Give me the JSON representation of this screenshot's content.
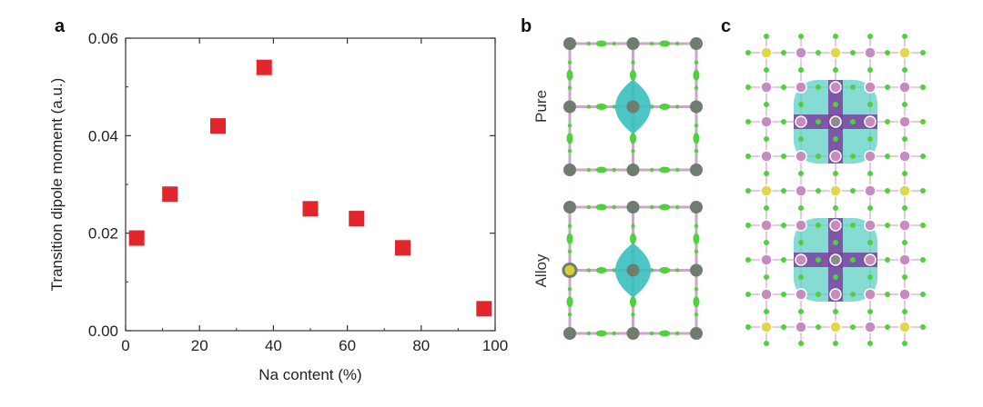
{
  "panels": {
    "a": "a",
    "b": "b",
    "c": "c"
  },
  "chart_data": {
    "type": "scatter",
    "xlabel": "Na content (%)",
    "ylabel": "Transition dipole moment (a.u.)",
    "xlim": [
      0,
      100
    ],
    "ylim": [
      0,
      0.06
    ],
    "x_ticks": [
      0,
      20,
      40,
      60,
      80,
      100
    ],
    "x_tick_labels": [
      "0",
      "20",
      "40",
      "60",
      "80",
      "100"
    ],
    "y_ticks": [
      0,
      0.02,
      0.04,
      0.06
    ],
    "y_tick_labels": [
      "0.00",
      "0.02",
      "0.04",
      "0.06"
    ],
    "grid": false,
    "marker": "square",
    "color": "#e3262b",
    "points": [
      {
        "x": 3,
        "y": 0.019
      },
      {
        "x": 12,
        "y": 0.028
      },
      {
        "x": 25,
        "y": 0.042
      },
      {
        "x": 37.5,
        "y": 0.054
      },
      {
        "x": 50,
        "y": 0.025
      },
      {
        "x": 62.5,
        "y": 0.023
      },
      {
        "x": 75,
        "y": 0.017
      },
      {
        "x": 97,
        "y": 0.0045
      }
    ]
  },
  "panel_b": {
    "labels": {
      "top": "Pure",
      "bottom": "Alloy"
    },
    "colors": {
      "node": "#6f7d6f",
      "bond": "#c9a9c6",
      "charge": "#39bfbf",
      "halide": "#4fd13a",
      "na": "#d9cf38"
    }
  },
  "panel_c": {
    "colors": {
      "pink": "#c78bc0",
      "yellow": "#e0d84a",
      "gray": "#8c8c8c",
      "charge": "#5ed0c4",
      "purple": "#7b3fa0",
      "green": "#4fd13a"
    }
  }
}
